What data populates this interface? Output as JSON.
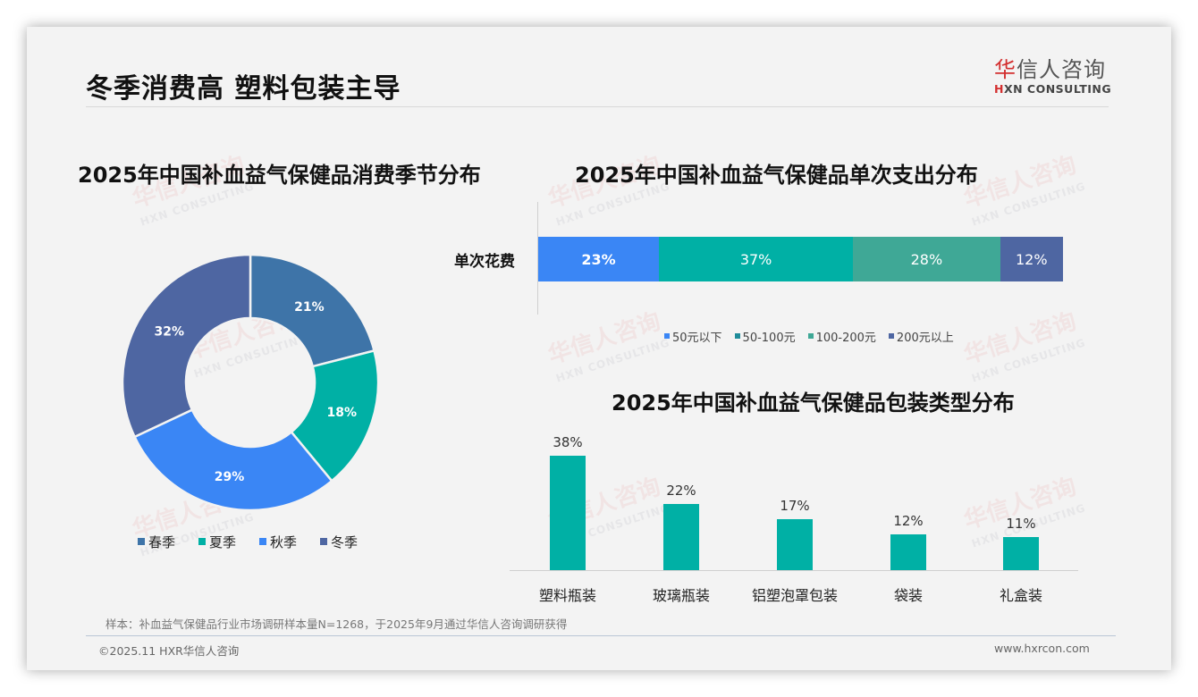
{
  "header": {
    "title": "冬季消费高 塑料包装主导",
    "logo": {
      "cn_red": "华",
      "cn_rest": "信人咨询",
      "en_red": "H",
      "en_rest": "XN CONSULTING"
    }
  },
  "watermark": {
    "cn": "华信人咨询",
    "en": "HXN CONSULTING"
  },
  "charts": {
    "season": {
      "title": "2025年中国补血益气保健品消费季节分布",
      "legend": [
        "春季",
        "夏季",
        "秋季",
        "冬季"
      ]
    },
    "spend": {
      "title": "2025年中国补血益气保健品单次支出分布",
      "row_label": "单次花费",
      "legend": [
        "50元以下",
        "50-100元",
        "100-200元",
        "200元以上"
      ]
    },
    "package": {
      "title": "2025年中国补血益气保健品包装类型分布"
    }
  },
  "chart_data": [
    {
      "type": "pie",
      "title": "2025年中国补血益气保健品消费季节分布",
      "categories": [
        "春季",
        "夏季",
        "秋季",
        "冬季"
      ],
      "values": [
        21,
        18,
        29,
        32
      ],
      "labels": [
        "21%",
        "18%",
        "29%",
        "32%"
      ],
      "colors": [
        "#3e74a8",
        "#00b0a5",
        "#3a86f5",
        "#4e66a2"
      ],
      "donut": true,
      "legend_position": "bottom"
    },
    {
      "type": "bar",
      "orientation": "horizontal-stacked-100",
      "title": "2025年中国补血益气保健品单次支出分布",
      "categories": [
        "单次花费"
      ],
      "series": [
        {
          "name": "50元以下",
          "values": [
            23
          ],
          "label": "23%",
          "color": "#3a86f5"
        },
        {
          "name": "50-100元",
          "values": [
            37
          ],
          "label": "37%",
          "color": "#00b0a5"
        },
        {
          "name": "100-200元",
          "values": [
            28
          ],
          "label": "28%",
          "color": "#3fa896"
        },
        {
          "name": "200元以上",
          "values": [
            12
          ],
          "label": "12%",
          "color": "#4e66a2"
        }
      ],
      "legend_position": "bottom"
    },
    {
      "type": "bar",
      "title": "2025年中国补血益气保健品包装类型分布",
      "categories": [
        "塑料瓶装",
        "玻璃瓶装",
        "铝塑泡罩包装",
        "袋装",
        "礼盒装"
      ],
      "values": [
        38,
        22,
        17,
        12,
        11
      ],
      "labels": [
        "38%",
        "22%",
        "17%",
        "12%",
        "11%"
      ],
      "color": "#00b0a5",
      "xlabel": "",
      "ylabel": "",
      "ylim": [
        0,
        40
      ],
      "grid": false
    }
  ],
  "footer": {
    "note": "样本：补血益气保健品行业市场调研样本量N=1268，于2025年9月通过华信人咨询调研获得",
    "copyright": "©2025.11 HXR华信人咨询",
    "website": "www.hxrcon.com"
  }
}
